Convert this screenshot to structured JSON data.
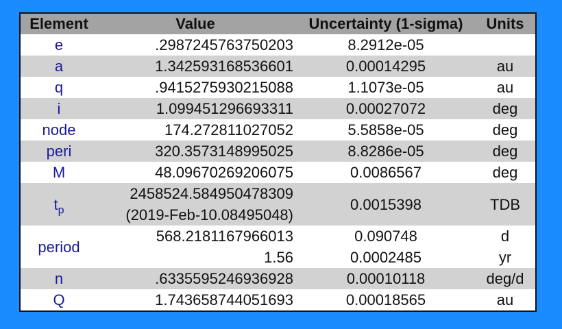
{
  "table": {
    "header": [
      "Element",
      "Value",
      "Uncertainty (1-sigma)",
      "Units"
    ],
    "rows": [
      {
        "element": "e",
        "value": [
          ".2987245763750203"
        ],
        "uncertainty": [
          "8.2912e-05"
        ],
        "units": []
      },
      {
        "element": "a",
        "value": [
          "1.342593168536601"
        ],
        "uncertainty": [
          "0.00014295"
        ],
        "units": [
          "au"
        ]
      },
      {
        "element": "q",
        "value": [
          ".9415275930215088"
        ],
        "uncertainty": [
          "1.1073e-05"
        ],
        "units": [
          "au"
        ]
      },
      {
        "element": "i",
        "value": [
          "1.099451296693311"
        ],
        "uncertainty": [
          "0.00027072"
        ],
        "units": [
          "deg"
        ]
      },
      {
        "element": "node",
        "value": [
          "174.272811027052"
        ],
        "uncertainty": [
          "5.5858e-05"
        ],
        "units": [
          "deg"
        ]
      },
      {
        "element": "peri",
        "value": [
          "320.3573148995025"
        ],
        "uncertainty": [
          "8.8286e-05"
        ],
        "units": [
          "deg"
        ]
      },
      {
        "element": "M",
        "value": [
          "48.09670269206075"
        ],
        "uncertainty": [
          "0.0086567"
        ],
        "units": [
          "deg"
        ]
      },
      {
        "element": {
          "base": "t",
          "sub": "p"
        },
        "value": [
          "2458524.584950478309",
          "(2019-Feb-10.08495048)"
        ],
        "uncertainty": [
          "0.0015398"
        ],
        "units": [
          "TDB"
        ]
      },
      {
        "element": "period",
        "value": [
          "568.2181167966013",
          "1.56"
        ],
        "uncertainty": [
          "0.090748",
          "0.0002485"
        ],
        "units": [
          "d",
          "yr"
        ]
      },
      {
        "element": "n",
        "value": [
          ".6335595246936928"
        ],
        "uncertainty": [
          "0.00010118"
        ],
        "units": [
          "deg/d"
        ]
      },
      {
        "element": "Q",
        "value": [
          "1.743658744051693"
        ],
        "uncertainty": [
          "0.00018565"
        ],
        "units": [
          "au"
        ]
      }
    ]
  }
}
